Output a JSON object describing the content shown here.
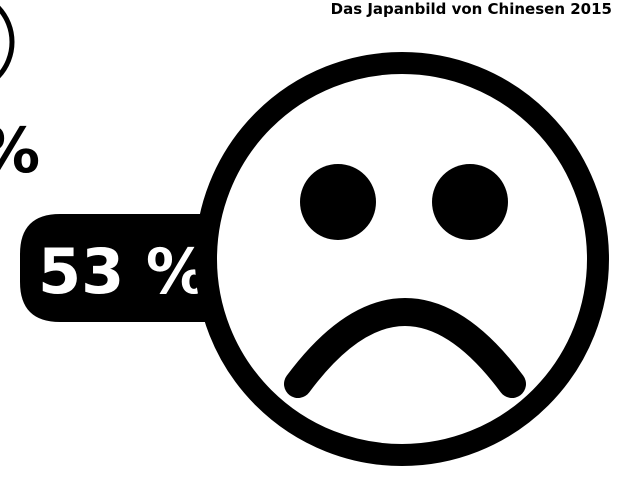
{
  "title": "Das Japanbild von Chinesen 2015",
  "label": "53 %",
  "cut_label": "%"
}
